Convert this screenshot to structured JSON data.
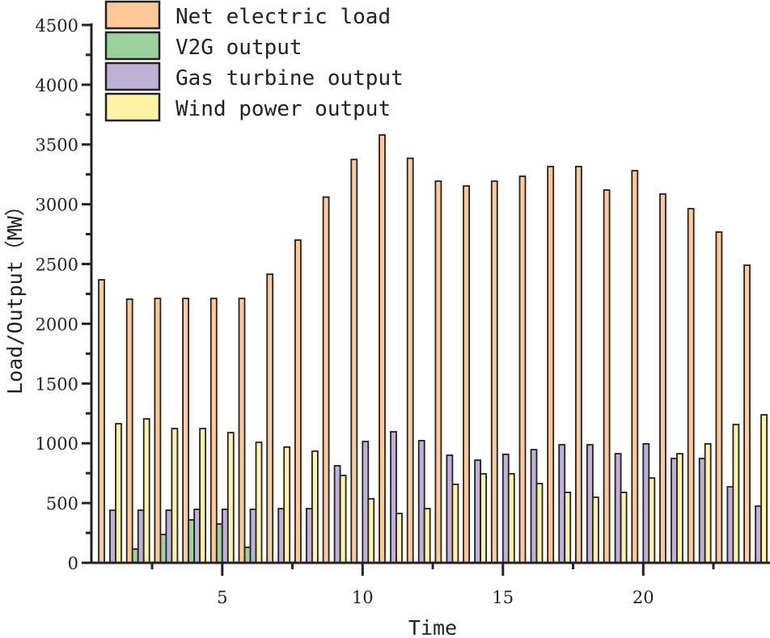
{
  "chart_data": {
    "type": "bar",
    "title": "",
    "xlabel": "Time",
    "ylabel": "Load/Output（MW）",
    "ylim": [
      0,
      4500
    ],
    "yticks": [
      0,
      500,
      1000,
      1500,
      2000,
      2500,
      3000,
      3500,
      4000,
      4500
    ],
    "xticks": [
      5,
      10,
      15,
      20
    ],
    "grid": false,
    "legend_position": "top-left",
    "categories": [
      1,
      2,
      3,
      4,
      5,
      6,
      7,
      8,
      9,
      10,
      11,
      12,
      13,
      14,
      15,
      16,
      17,
      18,
      19,
      20,
      21,
      22,
      23,
      24
    ],
    "series": [
      {
        "name": "Net electric load",
        "color": "#FFC896",
        "values": [
          2368,
          2206,
          2212,
          2212,
          2212,
          2212,
          2415,
          2700,
          3060,
          3375,
          3580,
          3385,
          3193,
          3153,
          3193,
          3234,
          3315,
          3315,
          3119,
          3281,
          3085,
          2963,
          2767,
          2490
        ]
      },
      {
        "name": "V2G output",
        "color": "#9DD19B",
        "values": [
          0,
          115,
          237,
          359,
          325,
          129,
          0,
          0,
          0,
          0,
          0,
          0,
          0,
          0,
          0,
          0,
          0,
          0,
          0,
          0,
          0,
          0,
          0,
          0
        ]
      },
      {
        "name": "Gas turbine output",
        "color": "#BFB0D6",
        "values": [
          440,
          440,
          440,
          447,
          447,
          447,
          453,
          453,
          812,
          1015,
          1096,
          1022,
          900,
          859,
          907,
          947,
          988,
          988,
          913,
          995,
          873,
          873,
          636,
          474
        ]
      },
      {
        "name": "Wind power output",
        "color": "#FBF4A6",
        "values": [
          1164,
          1204,
          1123,
          1123,
          1089,
          1008,
          968,
          934,
          731,
          535,
          413,
          453,
          656,
          744,
          744,
          663,
          589,
          548,
          589,
          710,
          913,
          995,
          1157,
          1238
        ]
      }
    ]
  }
}
